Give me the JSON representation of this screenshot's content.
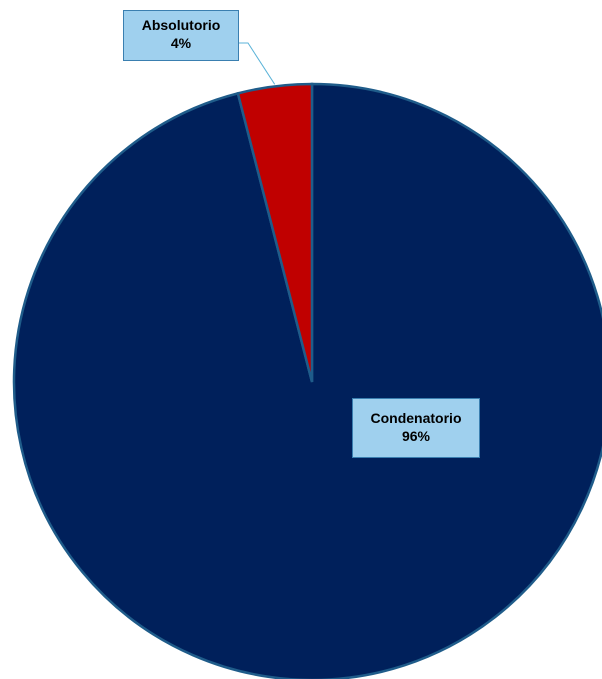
{
  "chart_data": {
    "type": "pie",
    "categories": [
      "Condenatorio",
      "Absolutorio"
    ],
    "values": [
      96,
      4
    ],
    "value_labels": [
      "96%",
      "4%"
    ],
    "colors": [
      "#00205b",
      "#c00000"
    ],
    "edge_color": "#1f5c8a",
    "label_fill": "#9fd0ee",
    "label_border": "#3a7fb0",
    "legend": "none",
    "title": ""
  }
}
